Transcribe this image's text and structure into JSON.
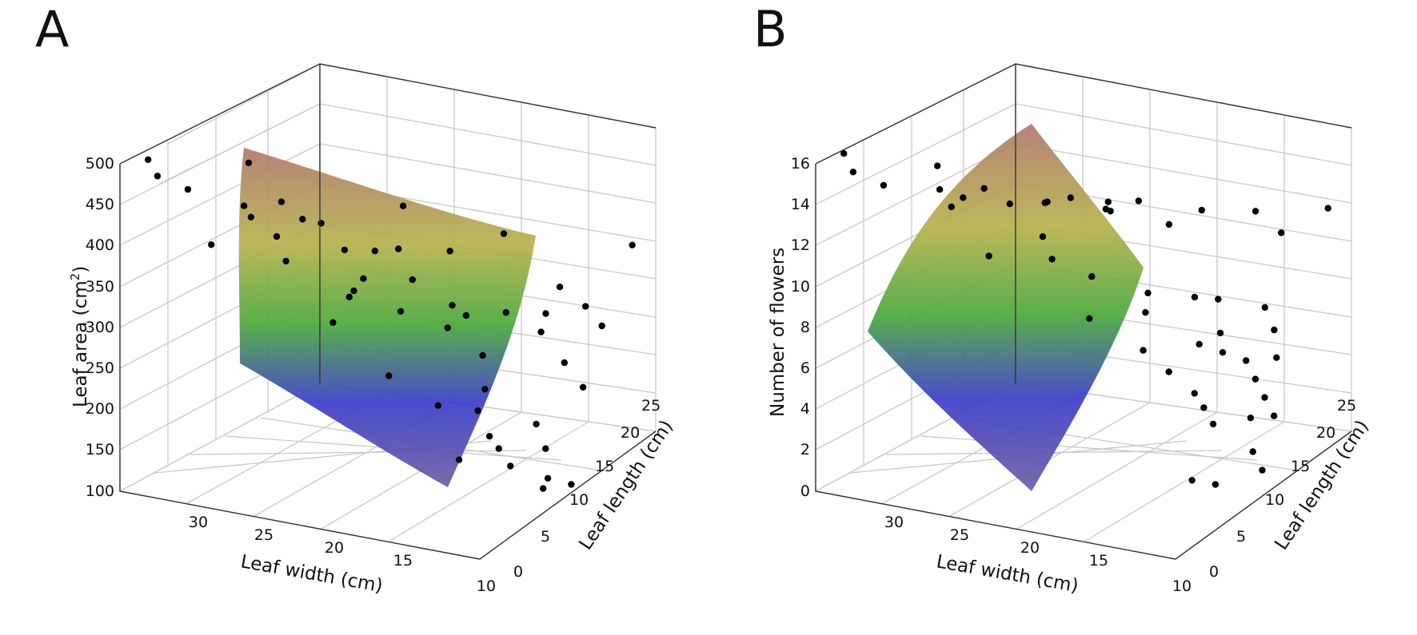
{
  "chart_data": [
    {
      "type": "scatter",
      "panel_label": "A",
      "surface": "fitted response surface colored by height (blue to green to yellow to brown)",
      "zlabel": "Leaf area (cm",
      "zlabel_sup": "2",
      "zlabel_end": ")",
      "xlabel": "Leaf width (cm)",
      "ylabel": "Leaf length (cm)",
      "zlim": [
        100,
        500
      ],
      "z_ticks": [
        "500",
        "450",
        "400",
        "350",
        "300",
        "250",
        "200",
        "150",
        "100"
      ],
      "x_ticks": [
        "30",
        "25",
        "20",
        "15",
        "10"
      ],
      "y_ticks": [
        "0",
        "5",
        "10",
        "15",
        "20",
        "25"
      ],
      "points": [
        [
          31,
          3,
          470
        ],
        [
          32,
          4,
          480
        ],
        [
          30,
          5,
          445
        ],
        [
          27,
          6,
          430
        ],
        [
          26,
          9,
          420
        ],
        [
          27,
          7,
          410
        ],
        [
          25,
          6,
          400
        ],
        [
          24,
          5,
          380
        ],
        [
          29,
          6,
          375
        ],
        [
          26,
          12,
          380
        ],
        [
          24,
          10,
          395
        ],
        [
          23,
          11,
          360
        ],
        [
          22,
          13,
          350
        ],
        [
          21,
          14,
          350
        ],
        [
          22,
          10,
          320
        ],
        [
          20,
          12,
          290
        ],
        [
          24,
          14,
          280
        ],
        [
          21,
          16,
          300
        ],
        [
          20,
          19,
          320
        ],
        [
          19,
          17,
          270
        ],
        [
          17,
          20,
          250
        ],
        [
          14,
          18,
          250
        ],
        [
          12,
          22,
          240
        ],
        [
          15,
          23,
          270
        ],
        [
          13,
          22,
          260
        ],
        [
          11,
          24,
          330
        ],
        [
          25,
          14,
          245
        ],
        [
          21,
          21,
          210
        ],
        [
          18,
          19,
          200
        ],
        [
          17,
          17,
          175
        ],
        [
          19,
          15,
          160
        ],
        [
          17,
          16,
          155
        ],
        [
          15,
          13,
          150
        ],
        [
          14,
          12,
          145
        ],
        [
          16,
          11,
          130
        ],
        [
          13,
          15,
          160
        ],
        [
          12,
          14,
          140
        ],
        [
          11,
          12,
          120
        ],
        [
          10,
          13,
          110
        ],
        [
          12,
          9,
          150
        ],
        [
          10,
          9,
          130
        ],
        [
          11,
          17,
          200
        ],
        [
          13,
          19,
          210
        ],
        [
          15,
          21,
          250
        ],
        [
          28,
          9,
          460
        ],
        [
          22,
          17,
          380
        ],
        [
          18,
          22,
          330
        ],
        [
          16,
          12,
          300
        ],
        [
          19,
          8,
          240
        ],
        [
          24,
          16,
          290
        ]
      ]
    },
    {
      "type": "scatter",
      "panel_label": "B",
      "surface": "fitted response surface colored by height (blue to green to yellow to brown)",
      "zlabel": "Number of flowers",
      "xlabel": "Leaf width (cm)",
      "ylabel": "Leaf length (cm)",
      "zlim": [
        0,
        16
      ],
      "z_ticks": [
        "16",
        "14",
        "12",
        "10",
        "8",
        "6",
        "4",
        "2",
        "0"
      ],
      "x_ticks": [
        "30",
        "25",
        "20",
        "15",
        "10"
      ],
      "y_ticks": [
        "0",
        "5",
        "10",
        "15",
        "20",
        "25"
      ],
      "points": [
        [
          31,
          3,
          15
        ],
        [
          32,
          4,
          15.5
        ],
        [
          30,
          5,
          14
        ],
        [
          27,
          6,
          14
        ],
        [
          26,
          7,
          13.5
        ],
        [
          28,
          8,
          14.5
        ],
        [
          26,
          10,
          13.2
        ],
        [
          24,
          9,
          13
        ],
        [
          23,
          12,
          12.5
        ],
        [
          22,
          13,
          12.6
        ],
        [
          20,
          14,
          12
        ],
        [
          24,
          14,
          11.8
        ],
        [
          21,
          16,
          11.8
        ],
        [
          20,
          18,
          11.5
        ],
        [
          17,
          20,
          11
        ],
        [
          15,
          23,
          10.5
        ],
        [
          13,
          22,
          10
        ],
        [
          11,
          24,
          11
        ],
        [
          27,
          13,
          9
        ],
        [
          24,
          15,
          8.8
        ],
        [
          22,
          16,
          8
        ],
        [
          19,
          17,
          7.4
        ],
        [
          17,
          19,
          7
        ],
        [
          16,
          20,
          6.8
        ],
        [
          14,
          22,
          6.2
        ],
        [
          13,
          21,
          5.5
        ],
        [
          12,
          19,
          4.8
        ],
        [
          15,
          18,
          5.8
        ],
        [
          18,
          14,
          5.5
        ],
        [
          16,
          13,
          5
        ],
        [
          14,
          12,
          4.5
        ],
        [
          13,
          11,
          4.2
        ],
        [
          12,
          10,
          3.8
        ],
        [
          11,
          13,
          3.5
        ],
        [
          10,
          14,
          3.5
        ],
        [
          11,
          15,
          4
        ],
        [
          12,
          16,
          4.5
        ],
        [
          13,
          17,
          5
        ],
        [
          14,
          16,
          5.5
        ],
        [
          15,
          15,
          6
        ],
        [
          10,
          11,
          2.5
        ],
        [
          9,
          10,
          2
        ],
        [
          11,
          8,
          1.5
        ],
        [
          12,
          7,
          1.8
        ],
        [
          28,
          10,
          12
        ],
        [
          22,
          18,
          10.8
        ],
        [
          19,
          20,
          10
        ],
        [
          17,
          12,
          8
        ],
        [
          20,
          11,
          7.5
        ],
        [
          25,
          16,
          9.5
        ]
      ]
    }
  ]
}
